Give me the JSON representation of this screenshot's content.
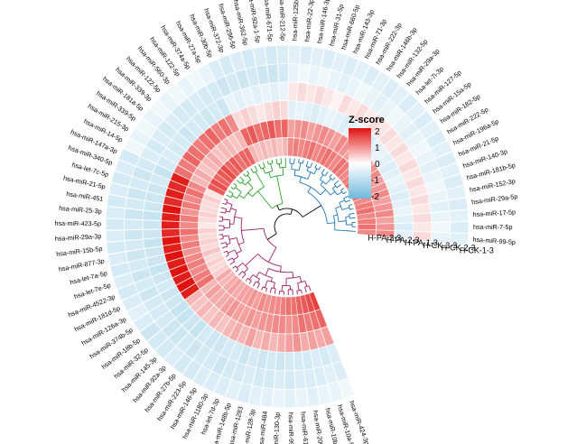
{
  "chart_data": {
    "type": "circular_heatmap",
    "samples": [
      "H-CK-1-3",
      "H-CK-2-3",
      "H-CK-3-3",
      "H-PA-1-3",
      "H-PA-2-3",
      "H-PA-3-3"
    ],
    "legend": {
      "title": "Z-score",
      "ticks": [
        "2",
        "1",
        "0",
        "-1",
        "-2"
      ],
      "range": [
        -2,
        2
      ],
      "colors": {
        "low": "#6fb8db",
        "mid": "#ffffff",
        "high": "#e0120f"
      }
    },
    "branch_colors": [
      "#1f77b4",
      "#2ca02c",
      "#9e1f63",
      "#000000"
    ],
    "genes": [
      {
        "label": "hsa-miR-424-3p",
        "z": [
          -0.2,
          -0.5,
          -0.5,
          0.8,
          1.3,
          1.6
        ]
      },
      {
        "label": "hsa-miR-10a-5p",
        "z": [
          -0.3,
          -0.4,
          -0.6,
          0.7,
          1.2,
          1.5
        ]
      },
      {
        "label": "hsa-miR-10b-5p",
        "z": [
          -0.3,
          -0.5,
          -0.5,
          0.8,
          1.1,
          1.4
        ]
      },
      {
        "label": "hsa-miR-200b-5p",
        "z": [
          -0.4,
          -0.5,
          -0.6,
          0.7,
          1.2,
          1.3
        ]
      },
      {
        "label": "hsa-miR-615-3p",
        "z": [
          -0.3,
          -0.5,
          -0.6,
          0.9,
          1.0,
          1.2
        ]
      },
      {
        "label": "hsa-miR-99b-5p",
        "z": [
          -0.4,
          -0.6,
          -0.6,
          0.8,
          0.9,
          1.2
        ]
      },
      {
        "label": "hsa-miR-130-3p",
        "z": [
          -0.3,
          -0.5,
          -0.7,
          0.7,
          1.0,
          1.1
        ]
      },
      {
        "label": "hsa-miR-484",
        "z": [
          -0.4,
          -0.6,
          -0.6,
          0.6,
          1.0,
          1.0
        ]
      },
      {
        "label": "hsa-miR-128-3p",
        "z": [
          -0.4,
          -0.6,
          -0.7,
          0.7,
          0.9,
          1.0
        ]
      },
      {
        "label": "hsa-miR-1283",
        "z": [
          -0.5,
          -0.5,
          -0.6,
          0.6,
          0.9,
          0.9
        ]
      },
      {
        "label": "hsa-miR-148b-5p",
        "z": [
          -0.4,
          -0.6,
          -0.7,
          0.8,
          0.8,
          1.0
        ]
      },
      {
        "label": "hsa-let-7d-3p",
        "z": [
          -0.5,
          -0.6,
          -0.6,
          0.6,
          0.9,
          0.8
        ]
      },
      {
        "label": "hsa-miR-1180-3p",
        "z": [
          -0.5,
          -0.7,
          -0.6,
          0.7,
          0.8,
          0.9
        ]
      },
      {
        "label": "hsa-miR-146-5p",
        "z": [
          -0.5,
          -0.6,
          -0.7,
          0.6,
          0.8,
          0.8
        ]
      },
      {
        "label": "hsa-miR-223-5p",
        "z": [
          -0.6,
          -0.6,
          -0.7,
          0.5,
          0.9,
          0.8
        ]
      },
      {
        "label": "hsa-miR-27b-5p",
        "z": [
          -0.6,
          -0.7,
          -0.6,
          0.6,
          0.8,
          0.7
        ]
      },
      {
        "label": "hsa-miR-92a-3p",
        "z": [
          -0.5,
          -0.6,
          -0.8,
          0.5,
          0.7,
          0.8
        ]
      },
      {
        "label": "hsa-miR-145-3p",
        "z": [
          -0.6,
          -0.7,
          -0.7,
          0.6,
          0.7,
          0.7
        ]
      },
      {
        "label": "hsa-miR-32-5p",
        "z": [
          -0.6,
          -0.7,
          -0.8,
          0.5,
          0.8,
          0.6
        ]
      },
      {
        "label": "hsa-miR-18b-5p",
        "z": [
          -0.7,
          -0.6,
          -0.8,
          0.6,
          0.6,
          0.7
        ]
      },
      {
        "label": "hsa-miR-374b-5p",
        "z": [
          -0.5,
          -0.6,
          -0.7,
          1.9,
          1.2,
          0.4
        ]
      },
      {
        "label": "hsa-miR-126a-3p",
        "z": [
          -0.4,
          -0.6,
          -0.7,
          2.0,
          1.1,
          0.3
        ]
      },
      {
        "label": "hsa-miR-181d-5p",
        "z": [
          -0.5,
          -0.7,
          -0.6,
          1.9,
          1.0,
          0.4
        ]
      },
      {
        "label": "hsa-miR-4522-3p",
        "z": [
          -0.6,
          -0.6,
          -0.7,
          2.0,
          1.1,
          0.3
        ]
      },
      {
        "label": "hsa-let-7e-5p",
        "z": [
          -0.5,
          -0.7,
          -0.8,
          1.9,
          1.0,
          0.5
        ]
      },
      {
        "label": "hsa-let-7a-5p",
        "z": [
          -0.6,
          -0.6,
          -0.7,
          2.0,
          0.9,
          0.3
        ]
      },
      {
        "label": "hsa-miR-877-3p",
        "z": [
          -0.5,
          -0.7,
          -0.7,
          1.9,
          1.1,
          0.4
        ]
      },
      {
        "label": "hsa-miR-15b-5p",
        "z": [
          -0.6,
          -0.6,
          -0.8,
          2.0,
          1.0,
          0.3
        ]
      },
      {
        "label": "hsa-miR-29a-3p",
        "z": [
          -0.5,
          -0.7,
          -0.7,
          1.8,
          1.2,
          0.4
        ]
      },
      {
        "label": "hsa-miR-423-5p",
        "z": [
          -0.6,
          -0.6,
          -0.7,
          1.9,
          1.0,
          0.2
        ]
      },
      {
        "label": "hsa-miR-25-3p",
        "z": [
          -0.5,
          -0.7,
          -0.8,
          1.9,
          1.1,
          0.3
        ]
      },
      {
        "label": "hsa-miR-451",
        "z": [
          -0.6,
          -0.6,
          -0.7,
          2.0,
          0.9,
          0.4
        ]
      },
      {
        "label": "hsa-miR-21-5p",
        "z": [
          -0.5,
          -0.7,
          -0.7,
          1.8,
          1.1,
          0.3
        ]
      },
      {
        "label": "hsa-let-7c-5p",
        "z": [
          -0.6,
          -0.6,
          -0.7,
          1.9,
          1.0,
          0.3
        ]
      },
      {
        "label": "hsa-miR-340-5p",
        "z": [
          -0.5,
          -0.7,
          -0.6,
          1.8,
          1.2,
          0.4
        ]
      },
      {
        "label": "hsa-miR-147a-3p",
        "z": [
          -0.6,
          -0.6,
          -0.8,
          1.9,
          1.0,
          0.2
        ]
      },
      {
        "label": "hsa-miR-14-5p",
        "z": [
          -0.2,
          -0.5,
          -0.6,
          1.2,
          0.6,
          1.4
        ]
      },
      {
        "label": "hsa-miR-215-3p",
        "z": [
          -0.3,
          -0.6,
          -0.5,
          1.1,
          0.7,
          1.5
        ]
      },
      {
        "label": "hsa-miR-339-5p",
        "z": [
          -0.2,
          -0.5,
          -0.6,
          1.3,
          0.5,
          1.3
        ]
      },
      {
        "label": "hsa-miR-181a-5p",
        "z": [
          -0.3,
          -0.6,
          -0.6,
          1.2,
          0.6,
          1.4
        ]
      },
      {
        "label": "hsa-miR-339-3p",
        "z": [
          -0.2,
          -0.5,
          -0.7,
          1.1,
          0.7,
          1.5
        ]
      },
      {
        "label": "hsa-miR-122-5p",
        "z": [
          -0.3,
          -0.6,
          -0.6,
          1.2,
          0.5,
          1.3
        ]
      },
      {
        "label": "hsa-miR-560-3p",
        "z": [
          -0.2,
          -0.6,
          -0.6,
          1.3,
          0.6,
          1.4
        ]
      },
      {
        "label": "hsa-miR-122-5p",
        "z": [
          -0.3,
          -0.5,
          -0.7,
          1.1,
          0.6,
          1.2
        ]
      },
      {
        "label": "hsa-miR-374a-5p",
        "z": [
          -0.2,
          -0.6,
          -0.6,
          1.2,
          0.5,
          1.3
        ]
      },
      {
        "label": "hsa-miR-27a-5p",
        "z": [
          -0.3,
          -0.6,
          -0.7,
          1.0,
          0.6,
          1.3
        ]
      },
      {
        "label": "hsa-miR-30b-5p",
        "z": [
          -0.5,
          -0.7,
          -0.3,
          0.3,
          1.3,
          0.6
        ]
      },
      {
        "label": "hsa-miR-372-3p",
        "z": [
          -0.6,
          -0.6,
          -0.4,
          0.4,
          1.4,
          0.5
        ]
      },
      {
        "label": "hsa-miR-296-5p",
        "z": [
          -0.5,
          -0.7,
          -0.3,
          0.3,
          1.2,
          0.6
        ]
      },
      {
        "label": "hsa-miR-362-5p",
        "z": [
          -0.6,
          -0.6,
          -0.4,
          0.2,
          1.3,
          0.5
        ]
      },
      {
        "label": "hsa-miR-92a-1-5p",
        "z": [
          -0.5,
          -0.7,
          -0.3,
          0.3,
          1.4,
          0.6
        ]
      },
      {
        "label": "hsa-miR-671-5p",
        "z": [
          -0.6,
          -0.7,
          -0.4,
          0.4,
          1.2,
          0.5
        ]
      },
      {
        "label": "hsa-miR-212-5p",
        "z": [
          -0.5,
          -0.6,
          -0.3,
          0.3,
          1.3,
          0.6
        ]
      },
      {
        "label": "hsa-miR-125b2-3p",
        "z": [
          -0.4,
          -0.3,
          0.2,
          -0.4,
          0.8,
          1.0
        ]
      },
      {
        "label": "hsa-miR-22-3p",
        "z": [
          -0.5,
          -0.2,
          0.3,
          -0.3,
          0.9,
          1.1
        ]
      },
      {
        "label": "hsa-miR-146-3p",
        "z": [
          -0.4,
          -0.3,
          0.2,
          -0.4,
          1.0,
          1.0
        ]
      },
      {
        "label": "hsa-miR-31-5p",
        "z": [
          -0.5,
          -0.2,
          0.3,
          -0.5,
          0.8,
          1.1
        ]
      },
      {
        "label": "hsa-miR-660-5p",
        "z": [
          -0.4,
          -0.3,
          0.2,
          -0.4,
          0.9,
          1.2
        ]
      },
      {
        "label": "hsa-miR-143-3p",
        "z": [
          -0.5,
          -0.4,
          0.1,
          -0.3,
          1.0,
          1.0
        ]
      },
      {
        "label": "hsa-miR-71-3p",
        "z": [
          -0.4,
          -0.3,
          0.3,
          -0.4,
          0.9,
          1.1
        ]
      },
      {
        "label": "hsa-miR-222-3p",
        "z": [
          -0.5,
          -0.2,
          0.2,
          -0.5,
          0.8,
          1.2
        ]
      },
      {
        "label": "hsa-miR-146b-3p",
        "z": [
          -0.4,
          -0.3,
          0.3,
          -0.4,
          1.0,
          1.1
        ]
      },
      {
        "label": "hsa-miR-132-5p",
        "z": [
          -0.5,
          -0.4,
          0.2,
          -0.3,
          0.9,
          1.0
        ]
      },
      {
        "label": "hsa-miR-29a-3p",
        "z": [
          -0.4,
          -0.3,
          0.3,
          -0.4,
          0.8,
          1.2
        ]
      },
      {
        "label": "hsa-let-7i-3p",
        "z": [
          -0.5,
          -0.2,
          0.2,
          -0.5,
          0.9,
          1.1
        ]
      },
      {
        "label": "hsa-miR-127-5p",
        "z": [
          -0.4,
          -0.3,
          0.3,
          -0.4,
          1.0,
          1.0
        ]
      },
      {
        "label": "hsa-miR-15a-5p",
        "z": [
          -0.5,
          -0.4,
          0.2,
          -0.3,
          0.8,
          1.1
        ]
      },
      {
        "label": "hsa-miR-182-5p",
        "z": [
          -0.4,
          -0.3,
          0.3,
          -0.4,
          0.9,
          1.2
        ]
      },
      {
        "label": "hsa-miR-222-5p",
        "z": [
          -0.5,
          -0.2,
          0.2,
          -0.5,
          1.0,
          1.0
        ]
      },
      {
        "label": "hsa-miR-196a-5p",
        "z": [
          -0.4,
          -0.3,
          0.3,
          -0.4,
          0.8,
          1.1
        ]
      },
      {
        "label": "hsa-miR-21-5p",
        "z": [
          -0.5,
          -0.4,
          0.2,
          -0.3,
          0.9,
          1.2
        ]
      },
      {
        "label": "hsa-miR-140-3p",
        "z": [
          -0.4,
          -0.3,
          0.3,
          -0.4,
          1.0,
          1.0
        ]
      },
      {
        "label": "hsa-miR-181b-5p",
        "z": [
          -0.5,
          -0.2,
          0.2,
          -0.5,
          0.8,
          1.1
        ]
      },
      {
        "label": "hsa-miR-152-3p",
        "z": [
          -0.4,
          -0.3,
          0.3,
          -0.4,
          0.9,
          1.2
        ]
      },
      {
        "label": "hsa-miR-29a-5p",
        "z": [
          -0.5,
          -0.4,
          0.2,
          -0.3,
          1.0,
          1.0
        ]
      },
      {
        "label": "hsa-miR-17-5p",
        "z": [
          -0.4,
          -0.3,
          0.3,
          -0.4,
          0.8,
          1.1
        ]
      },
      {
        "label": "hsa-miR-7-5p",
        "z": [
          -0.5,
          -0.2,
          0.2,
          -0.5,
          0.9,
          1.2
        ]
      },
      {
        "label": "hsa-miR-99-5p",
        "z": [
          -0.4,
          -0.3,
          0.3,
          -0.4,
          1.0,
          1.0
        ]
      }
    ]
  }
}
